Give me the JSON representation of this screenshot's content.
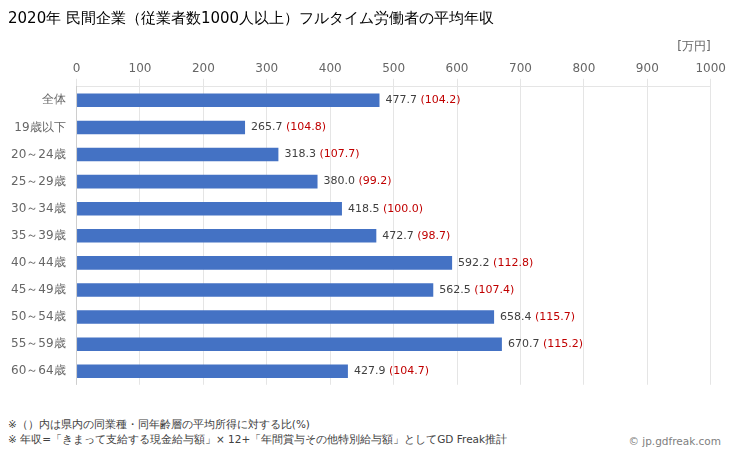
{
  "chart_data": {
    "type": "bar",
    "orientation": "horizontal",
    "title": "2020年 民間企業（従業者数1000人以上）フルタイム労働者の平均年収",
    "xlabel": "[万円]",
    "categories": [
      "全体",
      "19歳以下",
      "20～24歳",
      "25～29歳",
      "30～34歳",
      "35～39歳",
      "40～44歳",
      "45～49歳",
      "50～54歳",
      "55～59歳",
      "60～64歳"
    ],
    "values": [
      477.7,
      265.7,
      318.3,
      380.0,
      418.5,
      472.7,
      592.2,
      562.5,
      658.4,
      670.7,
      427.9
    ],
    "value_labels": [
      "477.7",
      "265.7",
      "318.3",
      "380.0",
      "418.5",
      "472.7",
      "592.2",
      "562.5",
      "658.4",
      "670.7",
      "427.9"
    ],
    "data_labels": true,
    "ratios": {
      "values": [
        104.2,
        104.8,
        107.7,
        99.2,
        100.0,
        98.7,
        112.8,
        107.4,
        115.7,
        115.2,
        104.7
      ],
      "labels": [
        "(104.2)",
        "(104.8)",
        "(107.7)",
        "(99.2)",
        "(100.0)",
        "(98.7)",
        "(112.8)",
        "(107.4)",
        "(115.7)",
        "(115.2)",
        "(104.7)"
      ],
      "color": "#C00000"
    },
    "color": "#4472C4",
    "xlim": [
      0,
      1000
    ],
    "xticks": [
      0,
      100,
      200,
      300,
      400,
      500,
      600,
      700,
      800,
      900,
      1000
    ],
    "grid": true,
    "annotations": [
      "※（）内は県内の同業種・同年齢層の平均所得に対する比(%)",
      "※ 年収=「きまって支給する現金給与額」× 12+「年間賞与その他特別給与額」としてGD Freak推計",
      "© jp.gdfreak.com"
    ]
  }
}
